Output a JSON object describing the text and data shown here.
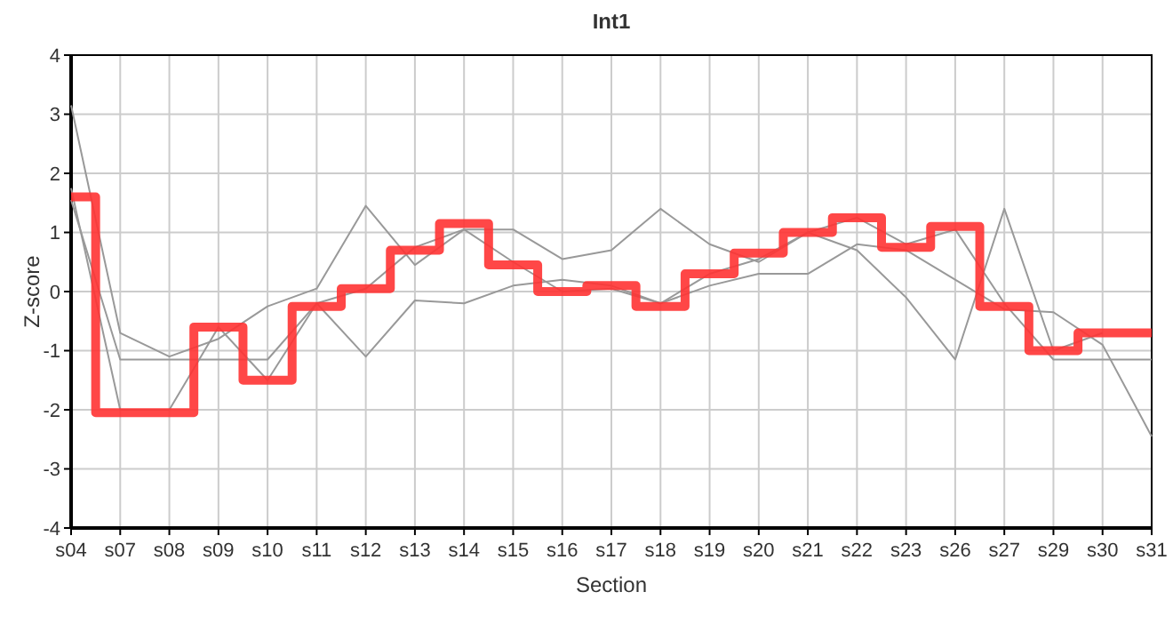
{
  "chart_data": {
    "type": "step",
    "title": "Int1",
    "xlabel": "Section",
    "ylabel": "Z-score",
    "categories": [
      "s04",
      "s07",
      "s08",
      "s09",
      "s10",
      "s11",
      "s12",
      "s13",
      "s14",
      "s15",
      "s16",
      "s17",
      "s18",
      "s19",
      "s20",
      "s21",
      "s22",
      "s23",
      "s26",
      "s27",
      "s29",
      "s30",
      "s31"
    ],
    "ylim": [
      -4,
      4
    ],
    "yticks": [
      -4,
      -3,
      -2,
      -1,
      0,
      1,
      2,
      3,
      4
    ],
    "grid": true,
    "marker": "none",
    "series": [
      {
        "type": "line",
        "color": "#999999",
        "values": [
          3.15,
          -0.7,
          -1.1,
          -0.8,
          -0.25,
          0.05,
          1.45,
          0.45,
          1.05,
          1.05,
          0.55,
          0.7,
          1.4,
          0.8,
          0.5,
          1.0,
          0.7,
          -0.1,
          -1.15,
          1.4,
          -1.0,
          -0.7,
          null
        ]
      },
      {
        "type": "line",
        "color": "#999999",
        "values": [
          1.55,
          -1.15,
          -1.15,
          -1.15,
          -1.15,
          -0.2,
          0.05,
          0.75,
          1.05,
          0.5,
          0.0,
          0.05,
          -0.2,
          0.3,
          0.55,
          1.0,
          1.25,
          0.8,
          1.05,
          -0.2,
          -1.15,
          -1.15,
          -1.15
        ]
      },
      {
        "type": "line",
        "color": "#999999",
        "values": [
          1.75,
          -2.0,
          -2.0,
          -0.6,
          -1.5,
          -0.2,
          -1.1,
          -0.15,
          -0.2,
          0.1,
          0.2,
          0.1,
          -0.2,
          0.1,
          0.3,
          0.3,
          0.8,
          0.7,
          0.2,
          -0.3,
          -0.35,
          -0.9,
          -2.45
        ]
      },
      {
        "color": "#ff3333",
        "values": [
          1.6,
          -2.05,
          -2.05,
          -0.6,
          -1.5,
          -0.25,
          0.05,
          0.7,
          1.15,
          0.45,
          0.0,
          0.1,
          -0.25,
          0.3,
          0.65,
          1.0,
          1.25,
          0.75,
          1.1,
          -0.25,
          -1.0,
          -0.7,
          -0.7
        ]
      }
    ]
  }
}
